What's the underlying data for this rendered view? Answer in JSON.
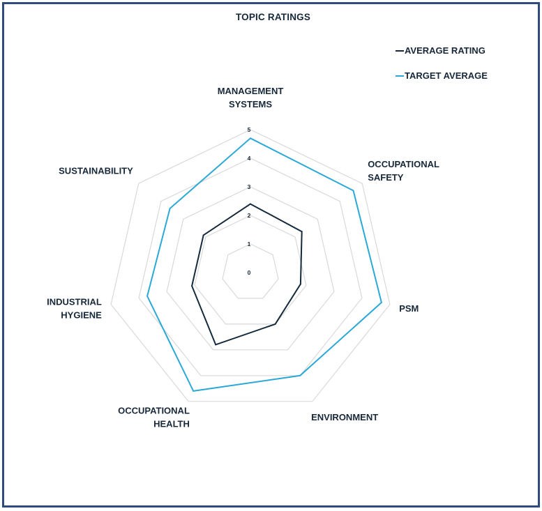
{
  "chart_data": {
    "type": "radar",
    "title": "TOPIC RATINGS",
    "categories": [
      "MANAGEMENT SYSTEMS",
      "OCCUPATIONAL SAFETY",
      "PSM",
      "ENVIRONMENT",
      "OCCUPATIONAL HEALTH",
      "INDUSTRIAL HYGIENE",
      "SUSTAINABILITY"
    ],
    "category_lines": [
      [
        "MANAGEMENT",
        "SYSTEMS"
      ],
      [
        "OCCUPATIONAL",
        "SAFETY"
      ],
      [
        "PSM"
      ],
      [
        "ENVIRONMENT"
      ],
      [
        "OCCUPATIONAL",
        "HEALTH"
      ],
      [
        "INDUSTRIAL",
        "HYGIENE"
      ],
      [
        "SUSTAINABILITY"
      ]
    ],
    "series": [
      {
        "name": "AVERAGE RATING",
        "color": "#142a3c",
        "values": [
          2.4,
          2.3,
          1.8,
          2.0,
          2.8,
          2.1,
          2.1
        ]
      },
      {
        "name": "TARGET AVERAGE",
        "color": "#2aa8d8",
        "values": [
          4.7,
          4.6,
          4.7,
          4.0,
          4.6,
          3.7,
          3.6
        ]
      }
    ],
    "rmin": 0,
    "rmax": 5,
    "ticks": [
      0,
      1,
      2,
      3,
      4,
      5
    ],
    "grid": true,
    "grid_color": "#d9d9d9",
    "legend_position": "top-right"
  }
}
